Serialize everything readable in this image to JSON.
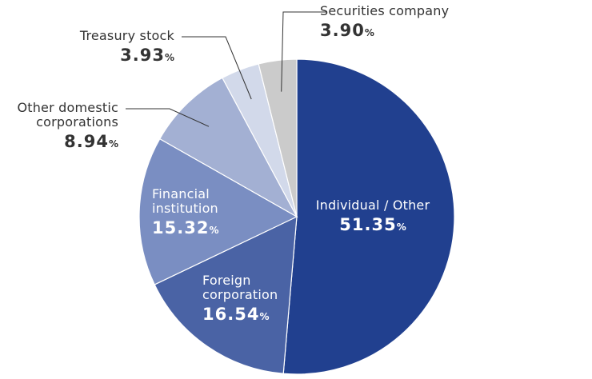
{
  "chart_data": {
    "type": "pie",
    "unit": "%",
    "colors": {
      "slices": [
        "#21408f",
        "#4a63a5",
        "#7a8ec2",
        "#a3b0d3",
        "#d2d9ea",
        "#cbcbcb"
      ],
      "leader_line": "#333333",
      "text_inside": "#ffffff",
      "text_outside": "#333333"
    },
    "slices": [
      {
        "label": "Individual / Other",
        "value": "51.35",
        "unit": "%"
      },
      {
        "label": "Foreign corporation",
        "value": "16.54",
        "unit": "%"
      },
      {
        "label": "Financial institution",
        "value": "15.32",
        "unit": "%"
      },
      {
        "label": "Other domestic corporations",
        "value": "8.94",
        "unit": "%"
      },
      {
        "label": "Treasury stock",
        "value": "3.93",
        "unit": "%"
      },
      {
        "label": "Securities company",
        "value": "3.90",
        "unit": "%"
      }
    ]
  }
}
